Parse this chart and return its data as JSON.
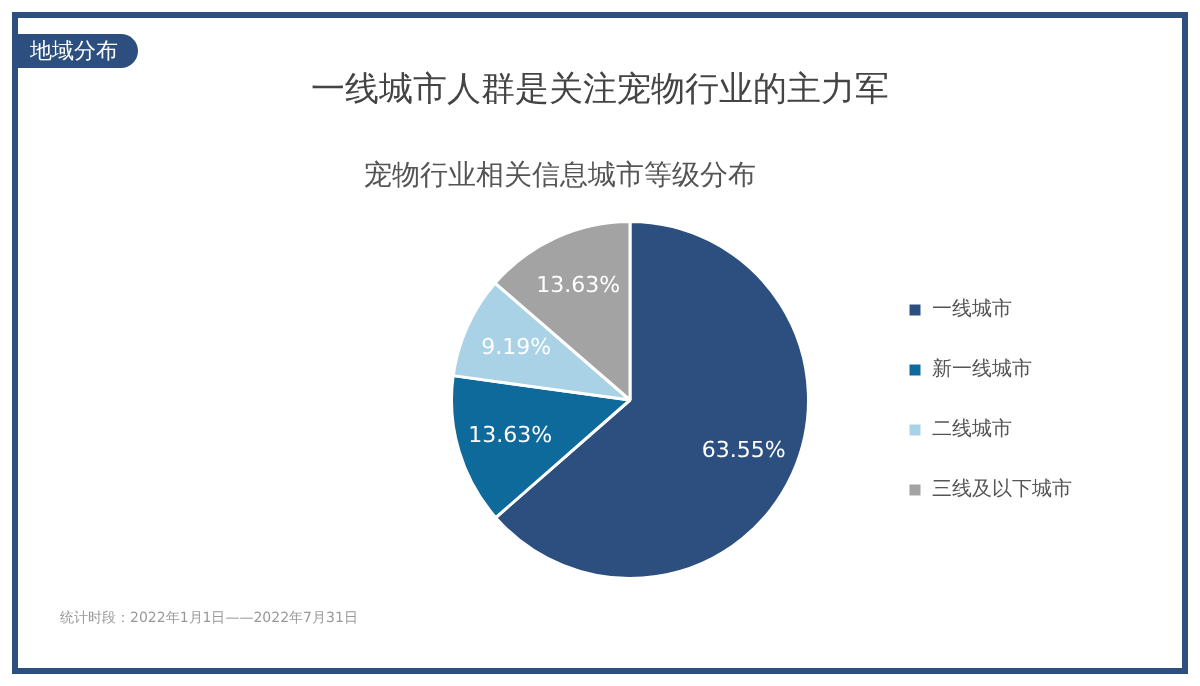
{
  "chart_data": {
    "type": "pie",
    "title": "一线城市人群是关注宠物行业的主力军",
    "subtitle": "宠物行业相关信息城市等级分布",
    "categories": [
      "一线城市",
      "新一线城市",
      "二线城市",
      "三线及以下城市"
    ],
    "values": [
      63.55,
      13.63,
      9.19,
      13.63
    ],
    "colors": [
      "#2c4f80",
      "#0f6a9c",
      "#a9d2e6",
      "#a3a3a3"
    ],
    "value_labels": [
      "63.55%",
      "13.63%",
      "9.19%",
      "13.63%"
    ],
    "legend": "right",
    "annotations": [
      "地域分布",
      "统计时段：2022年1月1日——2022年7月31日"
    ]
  }
}
